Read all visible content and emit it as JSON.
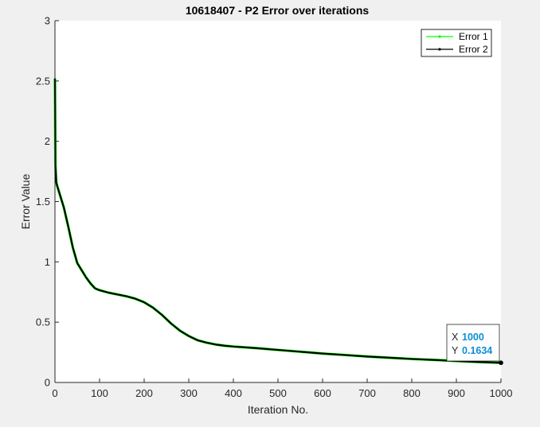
{
  "chart_data": {
    "type": "line",
    "title": "10618407 - P2 Error over iterations",
    "xlabel": "Iteration No.",
    "ylabel": "Error Value",
    "xlim": [
      0,
      1000
    ],
    "ylim": [
      0,
      3
    ],
    "xticks": [
      0,
      100,
      200,
      300,
      400,
      500,
      600,
      700,
      800,
      900,
      1000
    ],
    "yticks": [
      0,
      0.5,
      1,
      1.5,
      2,
      2.5,
      3
    ],
    "xtick_labels": [
      "0",
      "100",
      "200",
      "300",
      "400",
      "500",
      "600",
      "700",
      "800",
      "900",
      "1000"
    ],
    "ytick_labels": [
      "0",
      "0.5",
      "1",
      "1.5",
      "2",
      "2.5",
      "3"
    ],
    "grid": false,
    "legend_position": "top-right",
    "series": [
      {
        "name": "Error 1",
        "color": "#00ff00",
        "x": [
          0,
          1,
          3,
          5,
          10,
          20,
          30,
          40,
          50,
          60,
          70,
          80,
          90,
          100,
          120,
          140,
          160,
          180,
          200,
          220,
          240,
          260,
          280,
          300,
          320,
          340,
          360,
          380,
          400,
          450,
          500,
          550,
          600,
          650,
          700,
          750,
          800,
          850,
          900,
          950,
          1000
        ],
        "y": [
          2.52,
          1.8,
          1.66,
          1.63,
          1.57,
          1.45,
          1.29,
          1.12,
          0.99,
          0.93,
          0.87,
          0.82,
          0.78,
          0.765,
          0.745,
          0.73,
          0.715,
          0.695,
          0.665,
          0.62,
          0.56,
          0.49,
          0.43,
          0.385,
          0.35,
          0.33,
          0.315,
          0.305,
          0.298,
          0.285,
          0.27,
          0.255,
          0.24,
          0.228,
          0.215,
          0.205,
          0.195,
          0.187,
          0.178,
          0.17,
          0.1634
        ]
      },
      {
        "name": "Error 2",
        "color": "#000000",
        "x": [
          0,
          1,
          3,
          5,
          10,
          20,
          30,
          40,
          50,
          60,
          70,
          80,
          90,
          100,
          120,
          140,
          160,
          180,
          200,
          220,
          240,
          260,
          280,
          300,
          320,
          340,
          360,
          380,
          400,
          450,
          500,
          550,
          600,
          650,
          700,
          750,
          800,
          850,
          900,
          950,
          1000
        ],
        "y": [
          2.52,
          1.8,
          1.66,
          1.63,
          1.57,
          1.45,
          1.29,
          1.12,
          0.99,
          0.93,
          0.87,
          0.82,
          0.78,
          0.765,
          0.745,
          0.73,
          0.715,
          0.695,
          0.665,
          0.62,
          0.56,
          0.49,
          0.43,
          0.385,
          0.35,
          0.33,
          0.315,
          0.305,
          0.298,
          0.285,
          0.27,
          0.255,
          0.24,
          0.228,
          0.215,
          0.205,
          0.195,
          0.187,
          0.178,
          0.17,
          0.1634
        ]
      }
    ],
    "datatip": {
      "x": 1000,
      "y": 0.1634,
      "x_label": "X",
      "y_label": "Y",
      "x_text": "1000",
      "y_text": "0.1634"
    }
  }
}
